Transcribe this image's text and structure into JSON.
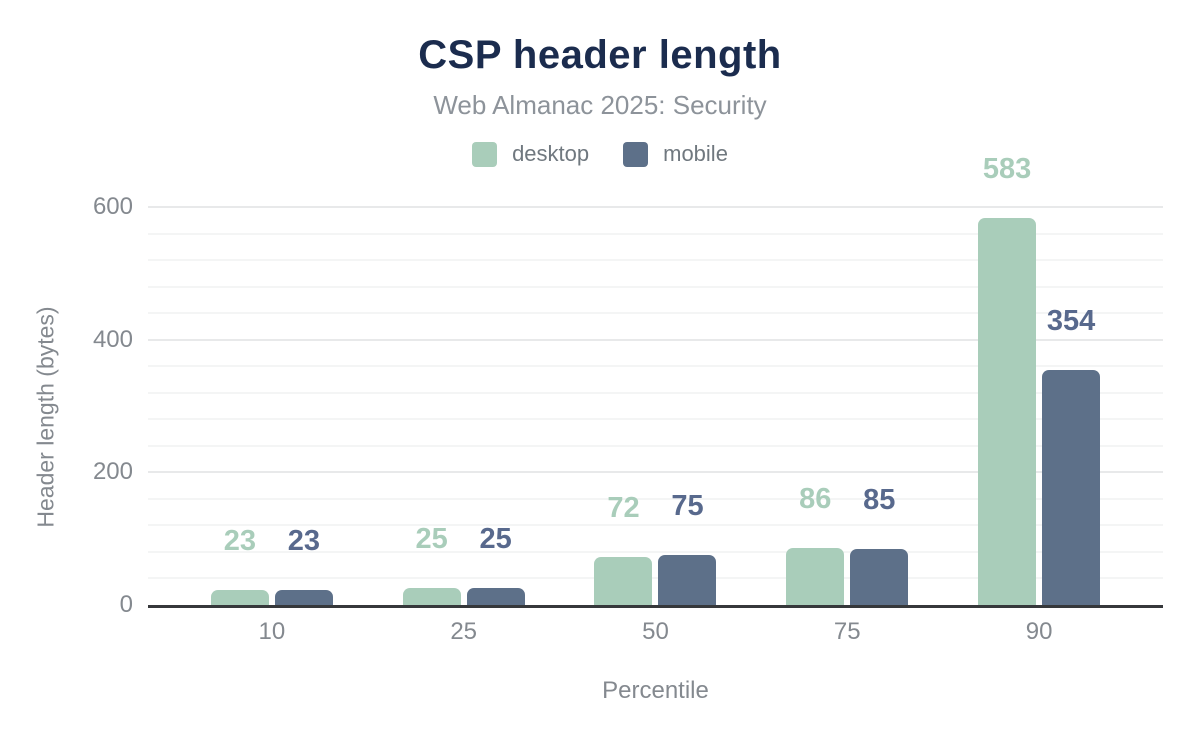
{
  "chart_data": {
    "type": "bar",
    "title": "CSP header length",
    "subtitle": "Web Almanac 2025: Security",
    "categories": [
      "10",
      "25",
      "50",
      "75",
      "90"
    ],
    "series": [
      {
        "name": "desktop",
        "color": "#a9cdba",
        "label_color": "#a9cdba",
        "values": [
          23,
          25,
          72,
          86,
          583
        ]
      },
      {
        "name": "mobile",
        "color": "#5d7089",
        "label_color": "#58698d",
        "values": [
          23,
          25,
          75,
          85,
          354
        ]
      }
    ],
    "xlabel": "Percentile",
    "ylabel": "Header length (bytes)",
    "ylim": [
      0,
      600
    ],
    "yticks": [
      0,
      200,
      400,
      600
    ],
    "minor_grid_step": 40,
    "major_grid_step": 200,
    "grid": true,
    "legend_position": "top",
    "value_labels": true
  },
  "theme": {
    "background": "#ffffff",
    "title_color": "#1b2c4e",
    "subtitle_color": "#8d939a",
    "legend_text_color": "#70787f",
    "axis_text_color": "#84898f",
    "axis_line_color": "#36383b",
    "grid_major_color": "#e8e9ea",
    "grid_minor_color": "#f4f5f5"
  }
}
